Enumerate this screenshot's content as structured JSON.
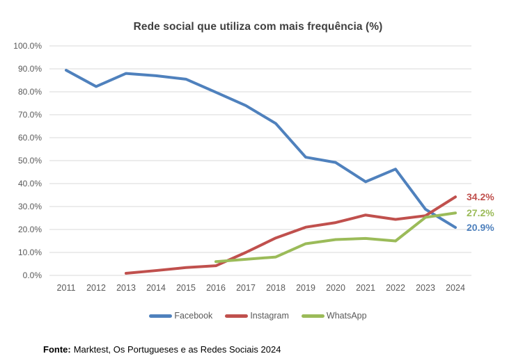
{
  "source_note": {
    "label": "Fonte:",
    "text": "Marktest, Os Portugueses e as Redes Sociais 2024"
  },
  "chart_data": {
    "type": "line",
    "title": "Rede social que utiliza com mais frequência (%)",
    "x": [
      "2011",
      "2012",
      "2013",
      "2014",
      "2015",
      "2016",
      "2017",
      "2018",
      "2019",
      "2020",
      "2021",
      "2022",
      "2023",
      "2024"
    ],
    "series": [
      {
        "name": "Facebook",
        "color": "#4F81BD",
        "values": [
          89.4,
          82.3,
          88.0,
          87.0,
          85.5,
          79.8,
          74.0,
          66.2,
          51.5,
          49.2,
          40.8,
          46.3,
          28.8,
          20.9
        ],
        "end_label": "20.9%"
      },
      {
        "name": "Instagram",
        "color": "#C0504D",
        "values": [
          null,
          null,
          0.9,
          2.1,
          3.4,
          4.2,
          10.0,
          16.3,
          21.0,
          23.0,
          26.3,
          24.4,
          26.0,
          34.2
        ],
        "end_label": "34.2%"
      },
      {
        "name": "WhatsApp",
        "color": "#9BBB59",
        "values": [
          null,
          null,
          null,
          null,
          null,
          6.0,
          7.0,
          8.0,
          13.8,
          15.6,
          16.1,
          15.0,
          25.3,
          27.2
        ],
        "end_label": "27.2%"
      }
    ],
    "ylim": [
      0,
      100
    ],
    "ytick_step": 10,
    "ytick_suffix": "%",
    "grid": true,
    "legend_position": "bottom",
    "grid_color": "#D9D9D9",
    "tick_color": "#595959"
  }
}
